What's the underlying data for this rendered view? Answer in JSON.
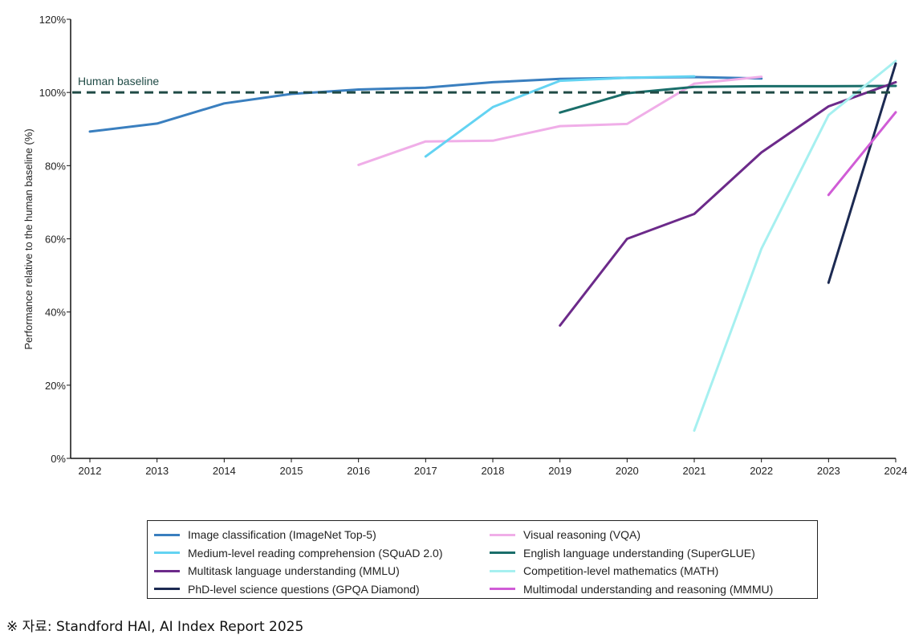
{
  "chart_data": {
    "type": "line",
    "title": "",
    "xlabel": "",
    "ylabel": "Performance relative to the human baseline (%)",
    "xlim": [
      2012,
      2024
    ],
    "ylim": [
      0,
      120
    ],
    "x_ticks": [
      "2012",
      "2013",
      "2014",
      "2015",
      "2016",
      "2017",
      "2018",
      "2019",
      "2020",
      "2021",
      "2022",
      "2023",
      "2024"
    ],
    "y_ticks": [
      "0%",
      "20%",
      "40%",
      "60%",
      "80%",
      "100%",
      "120%"
    ],
    "baseline": {
      "label": "Human baseline",
      "value": 100,
      "color": "#1f4a45"
    },
    "series": [
      {
        "name": "Image classification (ImageNet Top-5)",
        "color": "#3a7fbf",
        "x": [
          2012,
          2013,
          2014,
          2015,
          2016,
          2017,
          2018,
          2019,
          2020,
          2021,
          2022
        ],
        "y": [
          89.3,
          91.5,
          97.0,
          99.6,
          100.8,
          101.3,
          102.8,
          103.7,
          104.0,
          104.2,
          103.8
        ]
      },
      {
        "name": "Visual reasoning (VQA)",
        "color": "#f0aee8",
        "x": [
          2016,
          2017,
          2018,
          2019,
          2020,
          2021,
          2022
        ],
        "y": [
          80.2,
          86.6,
          86.8,
          90.8,
          91.4,
          102.4,
          104.3
        ]
      },
      {
        "name": "Medium-level reading comprehension (SQuAD 2.0)",
        "color": "#63d3f2",
        "x": [
          2017,
          2018,
          2019,
          2020,
          2021
        ],
        "y": [
          82.5,
          96.0,
          103.2,
          104.0,
          104.4
        ]
      },
      {
        "name": "English language understanding (SuperGLUE)",
        "color": "#1a6e6a",
        "x": [
          2019,
          2020,
          2021,
          2022,
          2023,
          2024
        ],
        "y": [
          94.5,
          99.8,
          101.5,
          101.7,
          101.7,
          101.8
        ]
      },
      {
        "name": "Multitask language understanding (MMLU)",
        "color": "#6c2a8a",
        "x": [
          2019,
          2020,
          2021,
          2022,
          2023,
          2024
        ],
        "y": [
          36.3,
          60.0,
          66.8,
          83.6,
          96.2,
          102.8
        ]
      },
      {
        "name": "Competition-level mathematics (MATH)",
        "color": "#a6f0f0",
        "x": [
          2021,
          2022,
          2023,
          2024
        ],
        "y": [
          7.6,
          57.3,
          93.8,
          108.6
        ]
      },
      {
        "name": "PhD-level science questions (GPQA Diamond)",
        "color": "#1c2a52",
        "x": [
          2023,
          2024
        ],
        "y": [
          48.0,
          107.9
        ]
      },
      {
        "name": "Multimodal understanding and reasoning (MMMU)",
        "color": "#d05cd6",
        "x": [
          2023,
          2024
        ],
        "y": [
          72.0,
          94.6
        ]
      }
    ],
    "legend": {
      "position": "bottom",
      "columns": 2
    }
  },
  "legend_items": [
    {
      "label": "Image classification (ImageNet Top-5)",
      "color": "#3a7fbf"
    },
    {
      "label": "Visual reasoning (VQA)",
      "color": "#f0aee8"
    },
    {
      "label": "Medium-level reading comprehension (SQuAD 2.0)",
      "color": "#63d3f2"
    },
    {
      "label": "English language understanding (SuperGLUE)",
      "color": "#1a6e6a"
    },
    {
      "label": "Multitask language understanding (MMLU)",
      "color": "#6c2a8a"
    },
    {
      "label": "Competition-level mathematics (MATH)",
      "color": "#a6f0f0"
    },
    {
      "label": "PhD-level science questions (GPQA Diamond)",
      "color": "#1c2a52"
    },
    {
      "label": "Multimodal understanding and reasoning (MMMU)",
      "color": "#d05cd6"
    }
  ],
  "source": "※ 자료: Standford HAI, AI Index Report 2025"
}
